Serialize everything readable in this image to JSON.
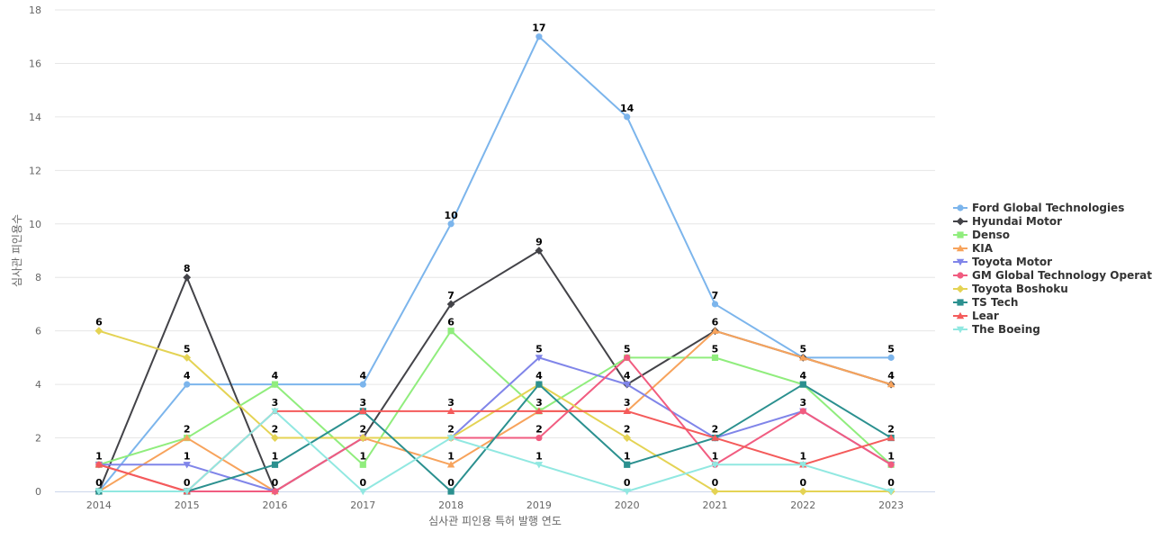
{
  "chart_data": {
    "type": "line",
    "title": "",
    "xlabel": "심사관 피인용 특허 발행 연도",
    "ylabel": "심사관 피인용수",
    "ylim": [
      0,
      18
    ],
    "yticks": [
      0,
      2,
      4,
      6,
      8,
      10,
      12,
      14,
      16,
      18
    ],
    "grid": true,
    "legend_position": "right",
    "categories": [
      "2014",
      "2015",
      "2016",
      "2017",
      "2018",
      "2019",
      "2020",
      "2021",
      "2022",
      "2023"
    ],
    "series": [
      {
        "name": "Ford Global Technologies",
        "color": "#7cb5ec",
        "marker": "circle",
        "values": [
          0,
          4,
          4,
          4,
          10,
          17,
          14,
          7,
          5,
          5
        ]
      },
      {
        "name": "Hyundai Motor",
        "color": "#434348",
        "marker": "diamond",
        "values": [
          0,
          8,
          0,
          2,
          7,
          9,
          4,
          6,
          5,
          4
        ]
      },
      {
        "name": "Denso",
        "color": "#90ed7d",
        "marker": "square",
        "values": [
          1,
          2,
          4,
          1,
          6,
          3,
          5,
          5,
          4,
          1
        ]
      },
      {
        "name": "KIA",
        "color": "#f7a35c",
        "marker": "triangle",
        "values": [
          0,
          2,
          0,
          2,
          1,
          3,
          3,
          6,
          5,
          4
        ]
      },
      {
        "name": "Toyota Motor",
        "color": "#8085e9",
        "marker": "triangle-down",
        "values": [
          1,
          1,
          0,
          2,
          2,
          5,
          4,
          2,
          3,
          1
        ]
      },
      {
        "name": "GM Global Technology Operat...",
        "color": "#f15c80",
        "marker": "circle",
        "values": [
          1,
          0,
          0,
          2,
          2,
          2,
          5,
          1,
          3,
          1
        ]
      },
      {
        "name": "Toyota Boshoku",
        "color": "#e4d354",
        "marker": "diamond",
        "values": [
          6,
          5,
          2,
          2,
          2,
          4,
          2,
          0,
          0,
          0
        ]
      },
      {
        "name": "TS Tech",
        "color": "#2b908f",
        "marker": "square",
        "values": [
          0,
          0,
          1,
          3,
          0,
          4,
          1,
          2,
          4,
          2
        ]
      },
      {
        "name": "Lear",
        "color": "#f45b5b",
        "marker": "triangle",
        "values": [
          1,
          0,
          3,
          3,
          3,
          3,
          3,
          2,
          1,
          2
        ]
      },
      {
        "name": "The Boeing",
        "color": "#91e8e1",
        "marker": "triangle-down",
        "values": [
          0,
          0,
          3,
          0,
          2,
          1,
          0,
          1,
          1,
          0
        ]
      }
    ],
    "data_labels": [
      {
        "category": "2014",
        "text": "6",
        "value": 6
      },
      {
        "category": "2014",
        "text": "1",
        "value": 1
      },
      {
        "category": "2014",
        "text": "0",
        "value": 0
      },
      {
        "category": "2015",
        "text": "8",
        "value": 8
      },
      {
        "category": "2015",
        "text": "5",
        "value": 5
      },
      {
        "category": "2015",
        "text": "4",
        "value": 4
      },
      {
        "category": "2015",
        "text": "2",
        "value": 2
      },
      {
        "category": "2015",
        "text": "1",
        "value": 1
      },
      {
        "category": "2015",
        "text": "0",
        "value": 0
      },
      {
        "category": "2016",
        "text": "4",
        "value": 4
      },
      {
        "category": "2016",
        "text": "3",
        "value": 3
      },
      {
        "category": "2016",
        "text": "2",
        "value": 2
      },
      {
        "category": "2016",
        "text": "1",
        "value": 1
      },
      {
        "category": "2016",
        "text": "0",
        "value": 0
      },
      {
        "category": "2017",
        "text": "4",
        "value": 4
      },
      {
        "category": "2017",
        "text": "3",
        "value": 3
      },
      {
        "category": "2017",
        "text": "2",
        "value": 2
      },
      {
        "category": "2017",
        "text": "1",
        "value": 1
      },
      {
        "category": "2017",
        "text": "0",
        "value": 0
      },
      {
        "category": "2018",
        "text": "10",
        "value": 10
      },
      {
        "category": "2018",
        "text": "7",
        "value": 7
      },
      {
        "category": "2018",
        "text": "6",
        "value": 6
      },
      {
        "category": "2018",
        "text": "3",
        "value": 3
      },
      {
        "category": "2018",
        "text": "2",
        "value": 2
      },
      {
        "category": "2018",
        "text": "1",
        "value": 1
      },
      {
        "category": "2018",
        "text": "0",
        "value": 0
      },
      {
        "category": "2019",
        "text": "17",
        "value": 17
      },
      {
        "category": "2019",
        "text": "9",
        "value": 9
      },
      {
        "category": "2019",
        "text": "5",
        "value": 5
      },
      {
        "category": "2019",
        "text": "4",
        "value": 4
      },
      {
        "category": "2019",
        "text": "3",
        "value": 3
      },
      {
        "category": "2019",
        "text": "2",
        "value": 2
      },
      {
        "category": "2019",
        "text": "1",
        "value": 1
      },
      {
        "category": "2020",
        "text": "14",
        "value": 14
      },
      {
        "category": "2020",
        "text": "5",
        "value": 5
      },
      {
        "category": "2020",
        "text": "4",
        "value": 4
      },
      {
        "category": "2020",
        "text": "3",
        "value": 3
      },
      {
        "category": "2020",
        "text": "2",
        "value": 2
      },
      {
        "category": "2020",
        "text": "1",
        "value": 1
      },
      {
        "category": "2020",
        "text": "0",
        "value": 0
      },
      {
        "category": "2021",
        "text": "7",
        "value": 7
      },
      {
        "category": "2021",
        "text": "6",
        "value": 6
      },
      {
        "category": "2021",
        "text": "5",
        "value": 5
      },
      {
        "category": "2021",
        "text": "2",
        "value": 2
      },
      {
        "category": "2021",
        "text": "1",
        "value": 1
      },
      {
        "category": "2021",
        "text": "0",
        "value": 0
      },
      {
        "category": "2022",
        "text": "5",
        "value": 5
      },
      {
        "category": "2022",
        "text": "4",
        "value": 4
      },
      {
        "category": "2022",
        "text": "3",
        "value": 3
      },
      {
        "category": "2022",
        "text": "1",
        "value": 1
      },
      {
        "category": "2022",
        "text": "0",
        "value": 0
      },
      {
        "category": "2023",
        "text": "5",
        "value": 5
      },
      {
        "category": "2023",
        "text": "4",
        "value": 4
      },
      {
        "category": "2023",
        "text": "2",
        "value": 2
      },
      {
        "category": "2023",
        "text": "1",
        "value": 1
      },
      {
        "category": "2023",
        "text": "0",
        "value": 0
      }
    ]
  }
}
